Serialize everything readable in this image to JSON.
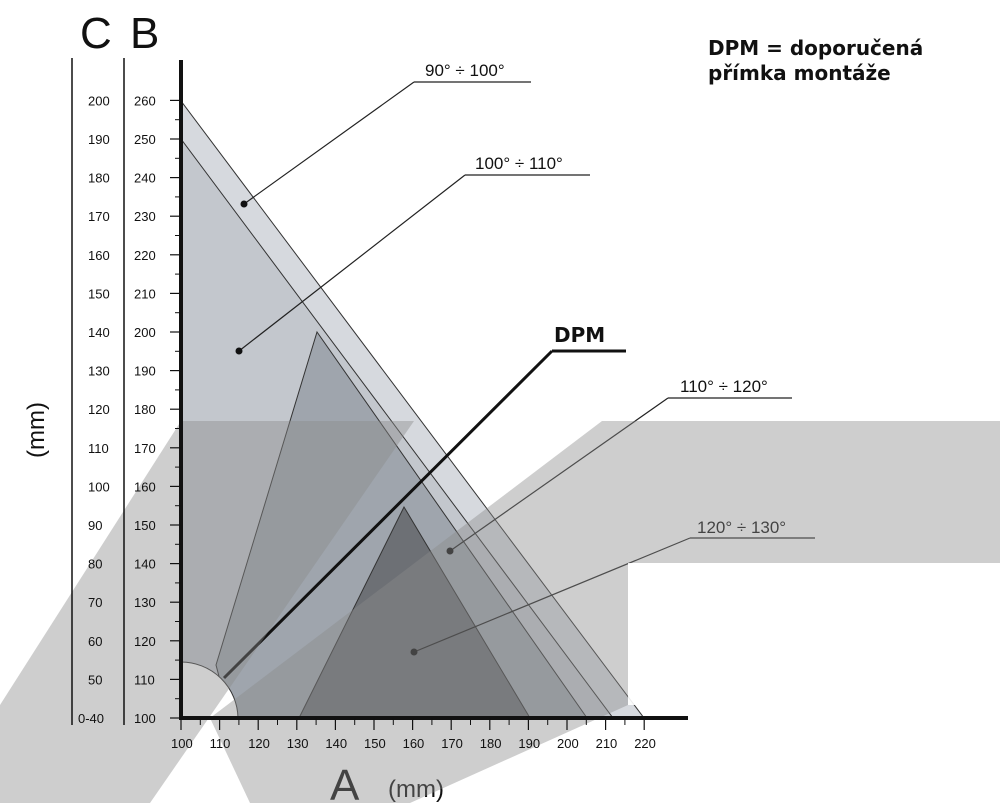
{
  "header": {
    "axis_c": "C",
    "axis_b": "B",
    "axis_a": "A",
    "unit_y": "(mm)",
    "unit_x": "(mm)",
    "legend_line1": "DPM = doporučená",
    "legend_line2": "přímka montáže"
  },
  "labels": {
    "range_1": "90° ÷ 100°",
    "range_2": "100° ÷ 110°",
    "range_3": "110° ÷ 120°",
    "range_4": "120° ÷ 130°",
    "dpm": "DPM"
  },
  "scale_a": [
    "100",
    "110",
    "120",
    "130",
    "140",
    "150",
    "160",
    "170",
    "180",
    "190",
    "200",
    "210",
    "220"
  ],
  "scale_b": [
    "100",
    "110",
    "120",
    "130",
    "140",
    "150",
    "160",
    "170",
    "180",
    "190",
    "200",
    "210",
    "220",
    "230",
    "240",
    "250",
    "260"
  ],
  "scale_c": [
    "0-40",
    "50",
    "60",
    "70",
    "80",
    "90",
    "100",
    "110",
    "120",
    "130",
    "140",
    "150",
    "160",
    "170",
    "180",
    "190",
    "200"
  ],
  "regions": [
    {
      "label": "90° ÷ 100°",
      "b_max": 260,
      "a_max": 220
    },
    {
      "label": "100° ÷ 110°",
      "b_max": 250,
      "a_max": 212
    },
    {
      "label": "110° ÷ 120°",
      "a_min": 110,
      "a_peak": 135,
      "b_peak": 200,
      "a_max": 204
    },
    {
      "label": "120° ÷ 130°",
      "a_min": 130,
      "a_peak": 157,
      "b_peak": 155,
      "a_max": 189
    }
  ],
  "colors": {
    "region_outer": "#d6d9de",
    "region_2": "#c3c7cd",
    "region_3": "#9fa5ad",
    "region_4": "#6d7075",
    "watermark": "#8a8a8a"
  }
}
